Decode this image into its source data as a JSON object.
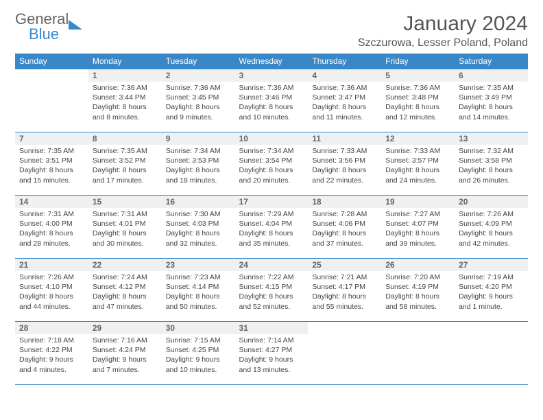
{
  "brand": {
    "word1": "General",
    "word2": "Blue"
  },
  "title": "January 2024",
  "location": "Szczurowa, Lesser Poland, Poland",
  "colors": {
    "header_bg": "#3a87c8",
    "header_fg": "#ffffff",
    "daynum_bg": "#eef0f2",
    "rule": "#3a87c8",
    "text": "#444444",
    "logo_gray": "#666666",
    "logo_blue": "#3a87c8",
    "page_bg": "#ffffff"
  },
  "typography": {
    "title_fontsize": 30,
    "location_fontsize": 16,
    "weekday_fontsize": 12,
    "daynum_fontsize": 12,
    "body_fontsize": 10.5,
    "logo_fontsize": 22
  },
  "weekdays": [
    "Sunday",
    "Monday",
    "Tuesday",
    "Wednesday",
    "Thursday",
    "Friday",
    "Saturday"
  ],
  "weeks": [
    [
      null,
      {
        "n": "1",
        "sunrise": "7:36 AM",
        "sunset": "3:44 PM",
        "daylight": "8 hours and 8 minutes."
      },
      {
        "n": "2",
        "sunrise": "7:36 AM",
        "sunset": "3:45 PM",
        "daylight": "8 hours and 9 minutes."
      },
      {
        "n": "3",
        "sunrise": "7:36 AM",
        "sunset": "3:46 PM",
        "daylight": "8 hours and 10 minutes."
      },
      {
        "n": "4",
        "sunrise": "7:36 AM",
        "sunset": "3:47 PM",
        "daylight": "8 hours and 11 minutes."
      },
      {
        "n": "5",
        "sunrise": "7:36 AM",
        "sunset": "3:48 PM",
        "daylight": "8 hours and 12 minutes."
      },
      {
        "n": "6",
        "sunrise": "7:35 AM",
        "sunset": "3:49 PM",
        "daylight": "8 hours and 14 minutes."
      }
    ],
    [
      {
        "n": "7",
        "sunrise": "7:35 AM",
        "sunset": "3:51 PM",
        "daylight": "8 hours and 15 minutes."
      },
      {
        "n": "8",
        "sunrise": "7:35 AM",
        "sunset": "3:52 PM",
        "daylight": "8 hours and 17 minutes."
      },
      {
        "n": "9",
        "sunrise": "7:34 AM",
        "sunset": "3:53 PM",
        "daylight": "8 hours and 18 minutes."
      },
      {
        "n": "10",
        "sunrise": "7:34 AM",
        "sunset": "3:54 PM",
        "daylight": "8 hours and 20 minutes."
      },
      {
        "n": "11",
        "sunrise": "7:33 AM",
        "sunset": "3:56 PM",
        "daylight": "8 hours and 22 minutes."
      },
      {
        "n": "12",
        "sunrise": "7:33 AM",
        "sunset": "3:57 PM",
        "daylight": "8 hours and 24 minutes."
      },
      {
        "n": "13",
        "sunrise": "7:32 AM",
        "sunset": "3:58 PM",
        "daylight": "8 hours and 26 minutes."
      }
    ],
    [
      {
        "n": "14",
        "sunrise": "7:31 AM",
        "sunset": "4:00 PM",
        "daylight": "8 hours and 28 minutes."
      },
      {
        "n": "15",
        "sunrise": "7:31 AM",
        "sunset": "4:01 PM",
        "daylight": "8 hours and 30 minutes."
      },
      {
        "n": "16",
        "sunrise": "7:30 AM",
        "sunset": "4:03 PM",
        "daylight": "8 hours and 32 minutes."
      },
      {
        "n": "17",
        "sunrise": "7:29 AM",
        "sunset": "4:04 PM",
        "daylight": "8 hours and 35 minutes."
      },
      {
        "n": "18",
        "sunrise": "7:28 AM",
        "sunset": "4:06 PM",
        "daylight": "8 hours and 37 minutes."
      },
      {
        "n": "19",
        "sunrise": "7:27 AM",
        "sunset": "4:07 PM",
        "daylight": "8 hours and 39 minutes."
      },
      {
        "n": "20",
        "sunrise": "7:26 AM",
        "sunset": "4:09 PM",
        "daylight": "8 hours and 42 minutes."
      }
    ],
    [
      {
        "n": "21",
        "sunrise": "7:26 AM",
        "sunset": "4:10 PM",
        "daylight": "8 hours and 44 minutes."
      },
      {
        "n": "22",
        "sunrise": "7:24 AM",
        "sunset": "4:12 PM",
        "daylight": "8 hours and 47 minutes."
      },
      {
        "n": "23",
        "sunrise": "7:23 AM",
        "sunset": "4:14 PM",
        "daylight": "8 hours and 50 minutes."
      },
      {
        "n": "24",
        "sunrise": "7:22 AM",
        "sunset": "4:15 PM",
        "daylight": "8 hours and 52 minutes."
      },
      {
        "n": "25",
        "sunrise": "7:21 AM",
        "sunset": "4:17 PM",
        "daylight": "8 hours and 55 minutes."
      },
      {
        "n": "26",
        "sunrise": "7:20 AM",
        "sunset": "4:19 PM",
        "daylight": "8 hours and 58 minutes."
      },
      {
        "n": "27",
        "sunrise": "7:19 AM",
        "sunset": "4:20 PM",
        "daylight": "9 hours and 1 minute."
      }
    ],
    [
      {
        "n": "28",
        "sunrise": "7:18 AM",
        "sunset": "4:22 PM",
        "daylight": "9 hours and 4 minutes."
      },
      {
        "n": "29",
        "sunrise": "7:16 AM",
        "sunset": "4:24 PM",
        "daylight": "9 hours and 7 minutes."
      },
      {
        "n": "30",
        "sunrise": "7:15 AM",
        "sunset": "4:25 PM",
        "daylight": "9 hours and 10 minutes."
      },
      {
        "n": "31",
        "sunrise": "7:14 AM",
        "sunset": "4:27 PM",
        "daylight": "9 hours and 13 minutes."
      },
      null,
      null,
      null
    ]
  ],
  "labels": {
    "sunrise": "Sunrise: ",
    "sunset": "Sunset: ",
    "daylight": "Daylight: "
  }
}
